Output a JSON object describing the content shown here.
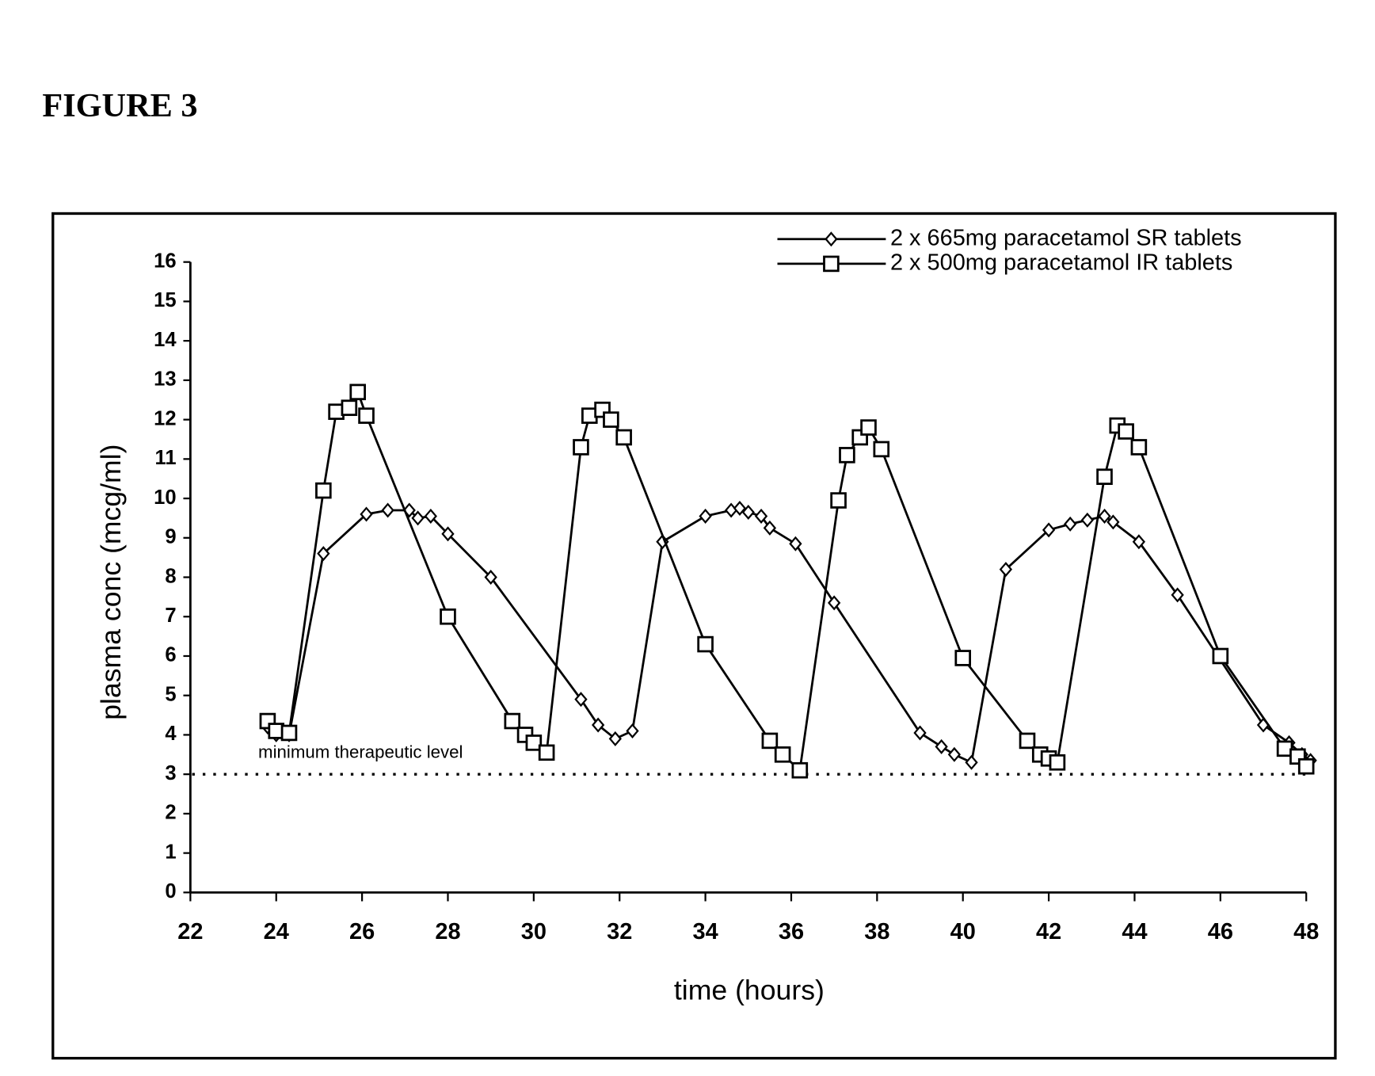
{
  "chart_data": {
    "type": "line",
    "title": "FIGURE 3",
    "x_label": "time (hours)",
    "y_label": "plasma conc (mcg/ml)",
    "xlim": [
      22,
      48
    ],
    "xticks": [
      22,
      24,
      26,
      28,
      30,
      32,
      34,
      36,
      38,
      40,
      42,
      44,
      46,
      48
    ],
    "ylim": [
      0,
      16
    ],
    "yticks": [
      0,
      1,
      2,
      3,
      4,
      5,
      6,
      7,
      8,
      9,
      10,
      11,
      12,
      13,
      14,
      15,
      16
    ],
    "threshold": 3,
    "threshold_label": "minimum therapeutic level",
    "legend": "upper right",
    "series": [
      {
        "name": "2 x 665mg paracetamol SR tablets",
        "marker": "diamond",
        "color": "#000000",
        "x": [
          23.8,
          24.0,
          24.3,
          25.1,
          26.1,
          26.6,
          27.1,
          27.3,
          27.6,
          28.0,
          29.0,
          31.1,
          31.5,
          31.9,
          32.3,
          33.0,
          34.0,
          34.6,
          34.8,
          35.0,
          35.3,
          35.5,
          36.1,
          37.0,
          39.0,
          39.5,
          39.8,
          40.2,
          41.0,
          42.0,
          42.5,
          42.9,
          43.3,
          43.5,
          44.1,
          45.0,
          47.0,
          47.6,
          47.9,
          48.1
        ],
        "values": [
          4.2,
          4.0,
          4.0,
          8.6,
          9.6,
          9.7,
          9.7,
          9.5,
          9.55,
          9.1,
          8.0,
          4.9,
          4.25,
          3.9,
          4.1,
          8.9,
          9.55,
          9.7,
          9.75,
          9.65,
          9.55,
          9.25,
          8.85,
          7.35,
          4.05,
          3.7,
          3.5,
          3.3,
          8.2,
          9.2,
          9.35,
          9.45,
          9.55,
          9.4,
          8.9,
          7.55,
          4.25,
          3.8,
          3.5,
          3.35
        ]
      },
      {
        "name": "2 x 500mg paracetamol IR tablets",
        "marker": "square",
        "color": "#000000",
        "x": [
          23.8,
          24.0,
          24.3,
          25.1,
          25.4,
          25.7,
          25.9,
          26.1,
          28.0,
          29.5,
          29.8,
          30.0,
          30.3,
          31.1,
          31.3,
          31.6,
          31.8,
          32.1,
          34.0,
          35.5,
          35.8,
          36.2,
          37.1,
          37.3,
          37.6,
          37.8,
          38.1,
          40.0,
          41.5,
          41.8,
          42.0,
          42.2,
          43.3,
          43.6,
          43.8,
          44.1,
          46.0,
          47.5,
          47.8,
          48.0
        ],
        "values": [
          4.35,
          4.1,
          4.05,
          10.2,
          12.2,
          12.3,
          12.7,
          12.1,
          7.0,
          4.35,
          4.0,
          3.8,
          3.55,
          11.3,
          12.1,
          12.25,
          12.0,
          11.55,
          6.3,
          3.85,
          3.5,
          3.1,
          9.95,
          11.1,
          11.55,
          11.8,
          11.25,
          5.95,
          3.85,
          3.5,
          3.4,
          3.3,
          10.55,
          11.85,
          11.7,
          11.3,
          6.0,
          3.65,
          3.45,
          3.2
        ]
      }
    ]
  }
}
